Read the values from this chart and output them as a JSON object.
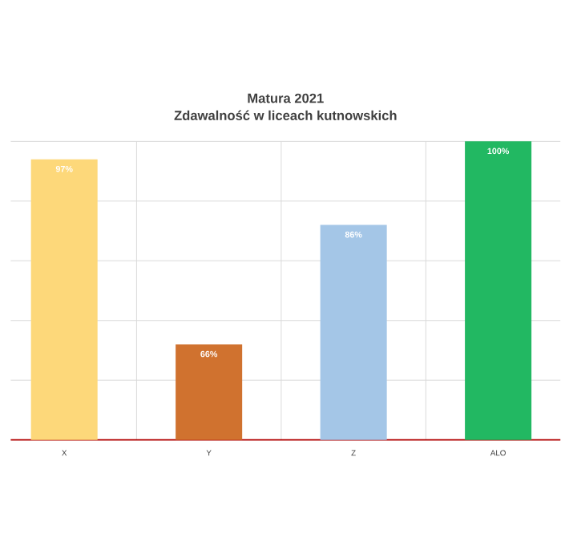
{
  "chart_data": {
    "type": "bar",
    "title": "Matura 2021",
    "subtitle": "Zdawalność w liceach kutnowskich",
    "categories": [
      "X",
      "Y",
      "Z",
      "ALO"
    ],
    "values": [
      97,
      66,
      86,
      100
    ],
    "value_labels": [
      "97%",
      "66%",
      "86%",
      "100%"
    ],
    "colors": [
      "#fdd87a",
      "#d0722f",
      "#a4c6e7",
      "#22b862"
    ],
    "ylim": [
      50,
      100
    ],
    "grid": true,
    "tick_labels": "x"
  }
}
